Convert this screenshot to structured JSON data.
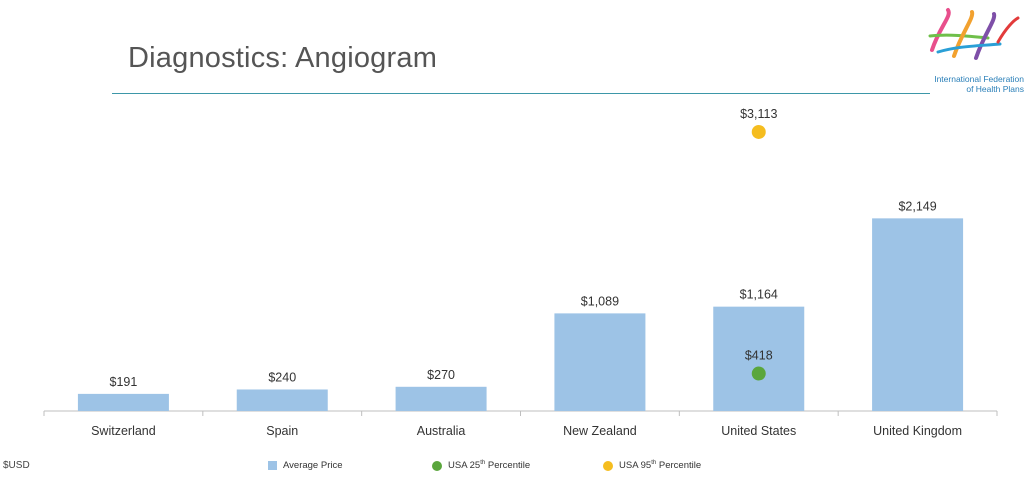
{
  "title": "Diagnostics: Angiogram",
  "logo": {
    "name": "ifhp-logo-icon",
    "text_line1": "International Federation",
    "text_line2": "of Health Plans"
  },
  "unit_label": "$USD",
  "legend": {
    "average_price": "Average Price",
    "usa_25_prefix": "USA 25",
    "usa_25_sup": "th",
    "usa_25_suffix": " Percentile",
    "usa_95_prefix": "USA 95",
    "usa_95_sup": "th",
    "usa_95_suffix": " Percentile"
  },
  "colors": {
    "bar": "#9dc3e6",
    "usa_25": "#5aa63c",
    "usa_95": "#f5bd1f",
    "axis": "#bfbfbf",
    "title_rule": "#3d97a8"
  },
  "chart_data": {
    "type": "bar",
    "title": "Diagnostics: Angiogram",
    "ylabel": "$USD",
    "ylim": [
      0,
      3400
    ],
    "grid": false,
    "legend_position": "bottom",
    "categories": [
      "Switzerland",
      "Spain",
      "Australia",
      "New Zealand",
      "United States",
      "United Kingdom"
    ],
    "series": [
      {
        "name": "Average Price",
        "type": "bar",
        "values": [
          191,
          240,
          270,
          1089,
          1164,
          2149
        ],
        "labels": [
          "$191",
          "$240",
          "$270",
          "$1,089",
          "$1,164",
          "$2,149"
        ]
      },
      {
        "name": "USA 25th Percentile",
        "type": "scatter",
        "category": "United States",
        "value": 418,
        "label": "$418"
      },
      {
        "name": "USA 95th Percentile",
        "type": "scatter",
        "category": "United States",
        "value": 3113,
        "label": "$3,113"
      }
    ]
  }
}
